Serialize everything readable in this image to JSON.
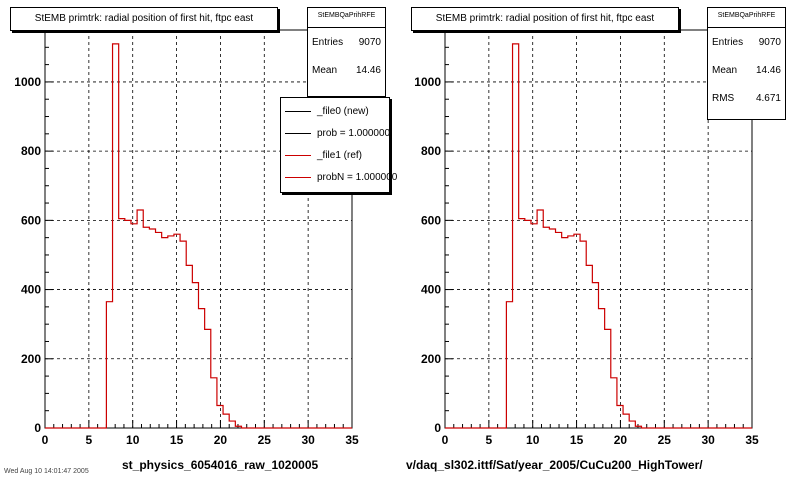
{
  "colors": {
    "ref": "#cc0000",
    "new": "#000000",
    "grid": "#000000"
  },
  "panels": [
    {
      "title": "StEMB primtrk: radial position of first hit, ftpc east",
      "stats": {
        "name": "StEMBQaPrihRFE",
        "entries_label": "Entries",
        "entries": "9070",
        "mean_label": "Mean",
        "mean": "14.46"
      },
      "legend": [
        {
          "label": "_file0 (new)",
          "color": "#000000"
        },
        {
          "label": "prob = 1.000000",
          "color": "#000000"
        },
        {
          "label": "_file1 (ref)",
          "color": "#cc0000"
        },
        {
          "label": "probN = 1.000000",
          "color": "#cc0000"
        }
      ],
      "xtitle": "st_physics_6054016_raw_1020005",
      "footer": "Wed Aug 10 14:01:47 2005"
    },
    {
      "title": "StEMB primtrk: radial position of first hit, ftpc east",
      "stats": {
        "name": "StEMBQaPrihRFE",
        "entries_label": "Entries",
        "entries": "9070",
        "mean_label": "Mean",
        "mean": "14.46",
        "rms_label": "RMS",
        "rms": "4.671"
      },
      "xtitle": "v/daq_sl302.ittf/Sat/year_2005/CuCu200_HighTower/"
    }
  ],
  "chart_data": [
    {
      "type": "histogram",
      "title": "StEMB primtrk: radial position of first hit, ftpc east",
      "xlabel": "st_physics_6054016_raw_1020005",
      "ylabel": "",
      "xlim": [
        0,
        35
      ],
      "ylim": [
        0,
        1150
      ],
      "xticks": [
        0,
        5,
        10,
        15,
        20,
        25,
        30,
        35
      ],
      "yticks": [
        0,
        200,
        400,
        600,
        800,
        1000
      ],
      "grid": true,
      "bin_width": 0.7,
      "bin_start": 0,
      "series": [
        {
          "name": "_file1 (ref)",
          "color": "#cc0000",
          "values": [
            0,
            0,
            0,
            0,
            0,
            0,
            0,
            0,
            0,
            0,
            365,
            1110,
            605,
            600,
            590,
            630,
            580,
            575,
            565,
            550,
            555,
            560,
            540,
            470,
            420,
            345,
            285,
            145,
            65,
            40,
            20,
            5,
            0,
            0,
            0,
            0,
            0,
            0,
            0,
            0,
            0,
            0,
            0,
            0,
            0,
            0,
            0,
            0,
            0,
            0
          ]
        }
      ]
    },
    {
      "type": "histogram",
      "title": "StEMB primtrk: radial position of first hit, ftpc east",
      "xlabel": "v/daq_sl302.ittf/Sat/year_2005/CuCu200_HighTower/",
      "ylabel": "",
      "xlim": [
        0,
        35
      ],
      "ylim": [
        0,
        1150
      ],
      "xticks": [
        0,
        5,
        10,
        15,
        20,
        25,
        30,
        35
      ],
      "yticks": [
        0,
        200,
        400,
        600,
        800,
        1000
      ],
      "grid": true,
      "bin_width": 0.7,
      "bin_start": 0,
      "series": [
        {
          "name": "_file1 (ref)",
          "color": "#cc0000",
          "values": [
            0,
            0,
            0,
            0,
            0,
            0,
            0,
            0,
            0,
            0,
            365,
            1110,
            605,
            600,
            590,
            630,
            580,
            575,
            565,
            550,
            555,
            560,
            540,
            470,
            420,
            345,
            285,
            145,
            65,
            40,
            20,
            5,
            0,
            0,
            0,
            0,
            0,
            0,
            0,
            0,
            0,
            0,
            0,
            0,
            0,
            0,
            0,
            0,
            0,
            0
          ]
        }
      ]
    }
  ]
}
